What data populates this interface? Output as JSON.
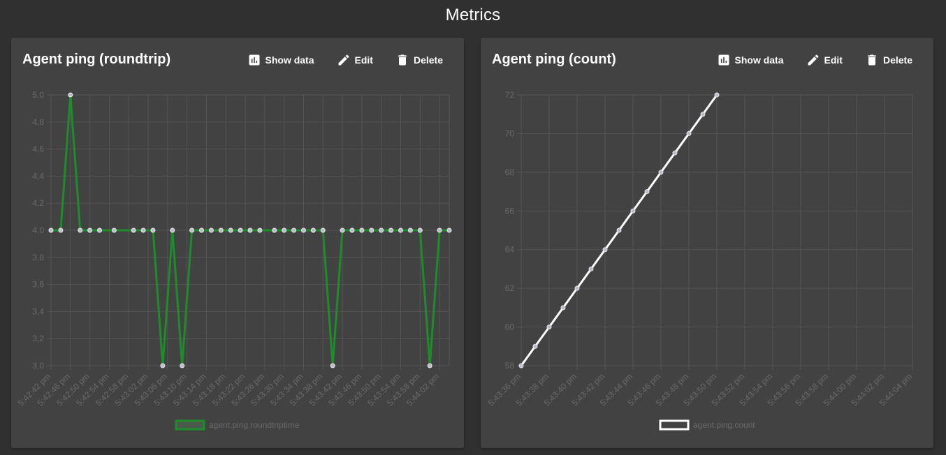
{
  "page": {
    "title": "Metrics"
  },
  "colors": {
    "background": "#303030",
    "card": "#424242",
    "grid": "#555555",
    "tick": "#6a6a6a",
    "green": "#1e8c2b",
    "white": "#ffffff"
  },
  "cards": [
    {
      "title": "Agent ping (roundtrip)",
      "actions": {
        "show_data": "Show data",
        "edit": "Edit",
        "delete": "Delete"
      },
      "action_icons": [
        "bar-chart-icon",
        "pencil-icon",
        "trash-icon"
      ]
    },
    {
      "title": "Agent ping (count)",
      "actions": {
        "show_data": "Show data",
        "edit": "Edit",
        "delete": "Delete"
      },
      "action_icons": [
        "bar-chart-icon",
        "pencil-icon",
        "trash-icon"
      ]
    }
  ],
  "chart_data": [
    {
      "type": "line",
      "title": "",
      "xlabel": "",
      "ylabel": "",
      "ylim": [
        3.0,
        5.0
      ],
      "yticks": [
        "5,0",
        "4,8",
        "4,6",
        "4,4",
        "4,2",
        "4,0",
        "3,8",
        "3,6",
        "3,4",
        "3,2",
        "3,0"
      ],
      "xticks": [
        "5:42:42 pm",
        "5:42:46 pm",
        "5:42:50 pm",
        "5:42:54 pm",
        "5:42:58 pm",
        "5:43:02 pm",
        "5:43:06 pm",
        "5:43:10 pm",
        "5:43:14 pm",
        "5:43:18 pm",
        "5:43:22 pm",
        "5:43:26 pm",
        "5:43:30 pm",
        "5:43:34 pm",
        "5:43:38 pm",
        "5:43:42 pm",
        "5:43:46 pm",
        "5:43:50 pm",
        "5:43:54 pm",
        "5:43:58 pm",
        "5:44:02 pm"
      ],
      "grid": true,
      "legend_position": "bottom",
      "series": [
        {
          "name": "agent.ping.roundtriptime",
          "color": "#1e8c2b",
          "points": [
            {
              "x": "5:42:42",
              "y": 4.0
            },
            {
              "x": "5:42:44",
              "y": 4.0
            },
            {
              "x": "5:42:46",
              "y": 5.0
            },
            {
              "x": "5:42:48",
              "y": 4.0
            },
            {
              "x": "5:42:50",
              "y": 4.0
            },
            {
              "x": "5:42:52",
              "y": 4.0
            },
            {
              "x": "5:42:55",
              "y": 4.0
            },
            {
              "x": "5:42:59",
              "y": 4.0
            },
            {
              "x": "5:43:01",
              "y": 4.0
            },
            {
              "x": "5:43:03",
              "y": 4.0
            },
            {
              "x": "5:43:05",
              "y": 3.0
            },
            {
              "x": "5:43:07",
              "y": 4.0
            },
            {
              "x": "5:43:09",
              "y": 3.0
            },
            {
              "x": "5:43:11",
              "y": 4.0
            },
            {
              "x": "5:43:13",
              "y": 4.0
            },
            {
              "x": "5:43:15",
              "y": 4.0
            },
            {
              "x": "5:43:17",
              "y": 4.0
            },
            {
              "x": "5:43:19",
              "y": 4.0
            },
            {
              "x": "5:43:21",
              "y": 4.0
            },
            {
              "x": "5:43:23",
              "y": 4.0
            },
            {
              "x": "5:43:25",
              "y": 4.0
            },
            {
              "x": "5:43:28",
              "y": 4.0
            },
            {
              "x": "5:43:30",
              "y": 4.0
            },
            {
              "x": "5:43:32",
              "y": 4.0
            },
            {
              "x": "5:43:34",
              "y": 4.0
            },
            {
              "x": "5:43:36",
              "y": 4.0
            },
            {
              "x": "5:43:38",
              "y": 4.0
            },
            {
              "x": "5:43:40",
              "y": 3.0
            },
            {
              "x": "5:43:42",
              "y": 4.0
            },
            {
              "x": "5:43:44",
              "y": 4.0
            },
            {
              "x": "5:43:46",
              "y": 4.0
            },
            {
              "x": "5:43:48",
              "y": 4.0
            },
            {
              "x": "5:43:50",
              "y": 4.0
            },
            {
              "x": "5:43:52",
              "y": 4.0
            },
            {
              "x": "5:43:54",
              "y": 4.0
            },
            {
              "x": "5:43:56",
              "y": 4.0
            },
            {
              "x": "5:43:58",
              "y": 4.0
            },
            {
              "x": "5:44:00",
              "y": 3.0
            },
            {
              "x": "5:44:02",
              "y": 4.0
            },
            {
              "x": "5:44:04",
              "y": 4.0
            }
          ]
        }
      ]
    },
    {
      "type": "line",
      "title": "",
      "xlabel": "",
      "ylabel": "",
      "ylim": [
        58,
        72
      ],
      "yticks": [
        "72",
        "70",
        "68",
        "66",
        "64",
        "62",
        "60",
        "58"
      ],
      "xticks": [
        "5:43:36 pm",
        "5:43:38 pm",
        "5:43:40 pm",
        "5:43:42 pm",
        "5:43:44 pm",
        "5:43:46 pm",
        "5:43:48 pm",
        "5:43:50 pm",
        "5:43:52 pm",
        "5:43:54 pm",
        "5:43:56 pm",
        "5:43:58 pm",
        "5:44:00 pm",
        "5:44:02 pm",
        "5:44:04 pm"
      ],
      "grid": true,
      "legend_position": "bottom",
      "series": [
        {
          "name": "agent.ping.count",
          "color": "#ffffff",
          "points": [
            {
              "x": "5:43:36",
              "y": 58
            },
            {
              "x": "5:43:37",
              "y": 59
            },
            {
              "x": "5:43:38",
              "y": 60
            },
            {
              "x": "5:43:39",
              "y": 61
            },
            {
              "x": "5:43:40",
              "y": 62
            },
            {
              "x": "5:43:41",
              "y": 63
            },
            {
              "x": "5:43:42",
              "y": 64
            },
            {
              "x": "5:43:43",
              "y": 65
            },
            {
              "x": "5:43:44",
              "y": 66
            },
            {
              "x": "5:43:45",
              "y": 67
            },
            {
              "x": "5:43:46",
              "y": 68
            },
            {
              "x": "5:43:47",
              "y": 69
            },
            {
              "x": "5:43:48",
              "y": 70
            },
            {
              "x": "5:43:49",
              "y": 71
            },
            {
              "x": "5:43:50",
              "y": 72
            }
          ]
        }
      ]
    }
  ]
}
